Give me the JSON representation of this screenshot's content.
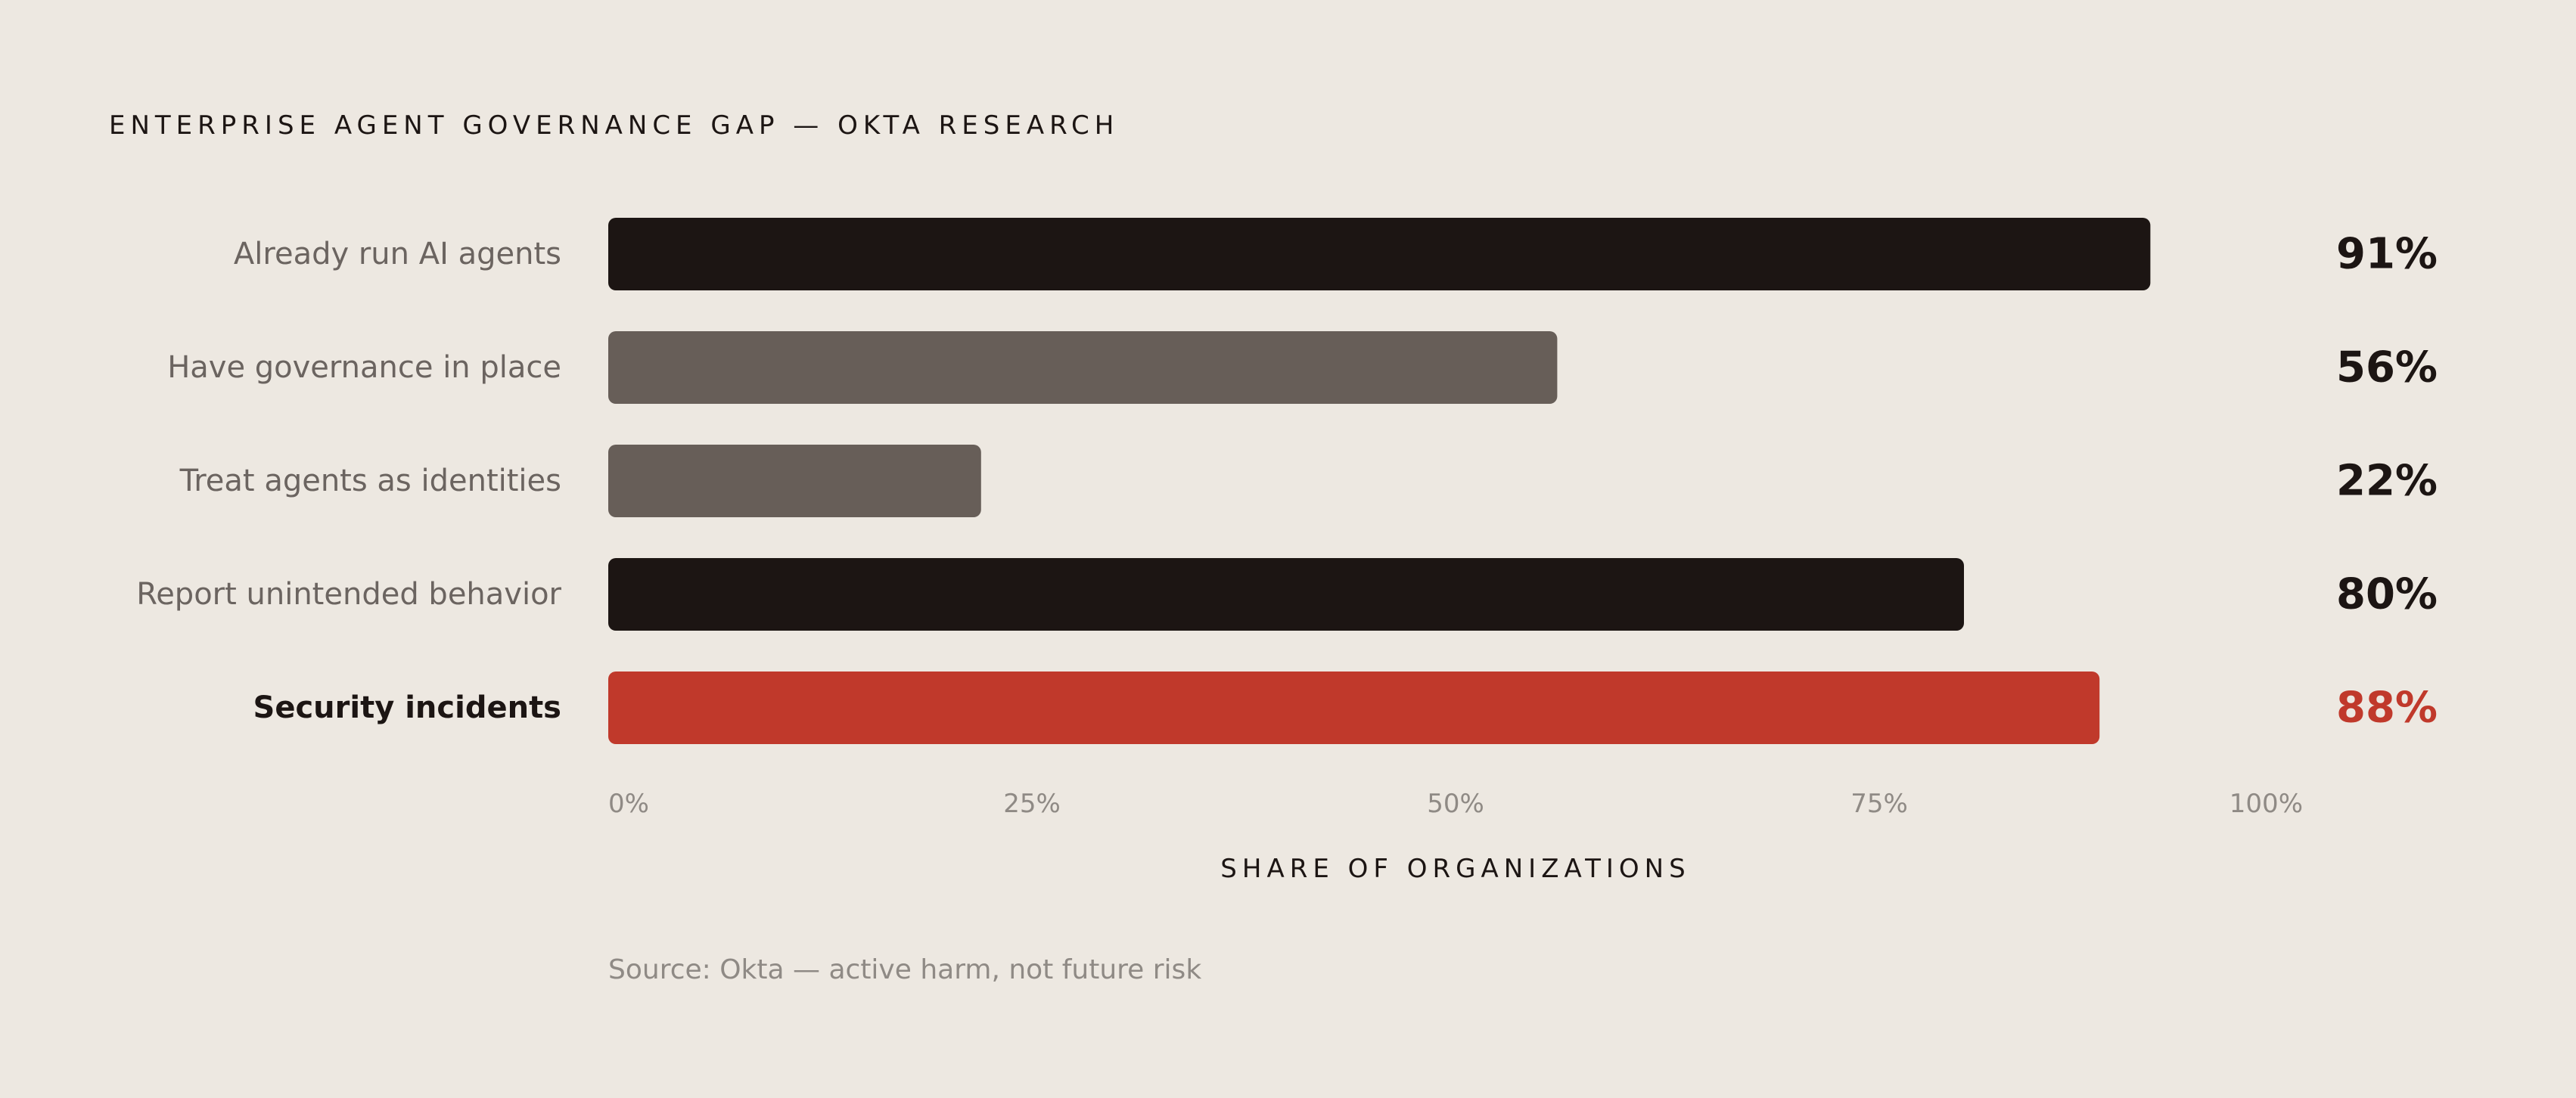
{
  "chart_data": {
    "type": "bar",
    "orientation": "horizontal",
    "title": "ENTERPRISE AGENT GOVERNANCE GAP — OKTA RESEARCH",
    "xlabel": "SHARE OF ORGANIZATIONS",
    "source": "Source: Okta — active harm, not future risk",
    "xlim": [
      0,
      100
    ],
    "ticks": [
      "0%",
      "25%",
      "50%",
      "75%",
      "100%"
    ],
    "tick_values": [
      0,
      25,
      50,
      75,
      100
    ],
    "grid": false,
    "categories": [
      "Already run AI agents",
      "Have governance in place",
      "Treat agents as identities",
      "Report unintended behavior",
      "Security incidents"
    ],
    "values": [
      91,
      56,
      22,
      80,
      88
    ],
    "value_labels": [
      "91%",
      "56%",
      "22%",
      "80%",
      "88%"
    ],
    "bar_colors": [
      "#1c1513",
      "#675e58",
      "#675e58",
      "#1c1513",
      "#c0392b"
    ],
    "value_label_colors": [
      "#1c1513",
      "#1c1513",
      "#1c1513",
      "#1c1513",
      "#c0392b"
    ],
    "highlighted_category": "Security incidents"
  }
}
